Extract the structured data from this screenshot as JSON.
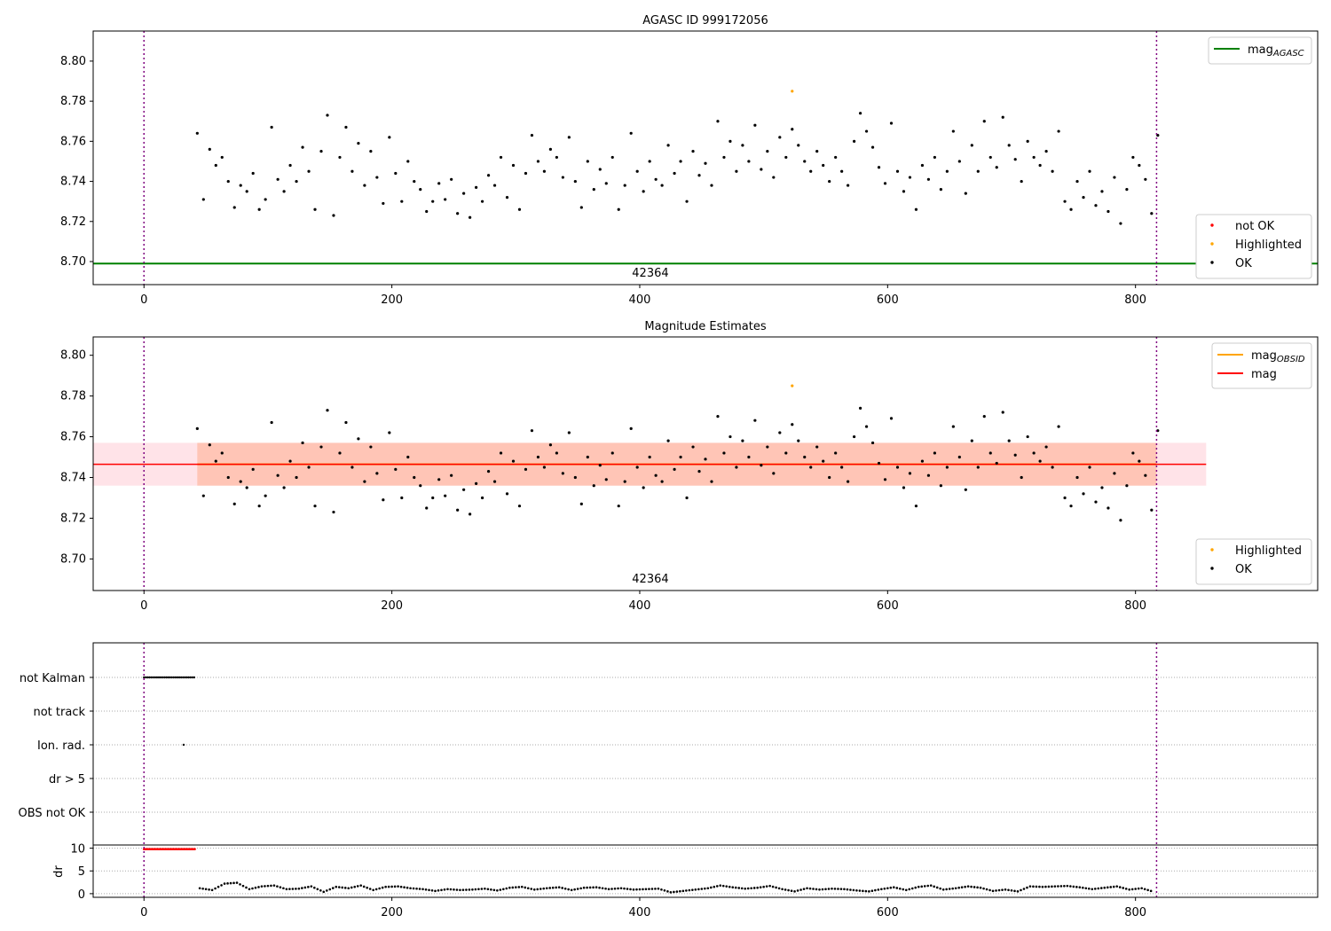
{
  "chart_data": [
    {
      "type": "scatter",
      "title": "AGASC ID 999172056",
      "xlim": [
        -41,
        947
      ],
      "ylim": [
        8.6885,
        8.815
      ],
      "yticks": [
        8.7,
        8.72,
        8.74,
        8.76,
        8.78,
        8.8
      ],
      "xticks": [
        0,
        200,
        400,
        600,
        800
      ],
      "annotation": "42364",
      "vlines": [
        0,
        817
      ],
      "mag_agasc": 8.699,
      "legend_lines": [
        {
          "label": "mag",
          "sub": "AGASC",
          "color": "#008000"
        }
      ],
      "legend_points": [
        {
          "label": "not OK",
          "color": "#ff0000"
        },
        {
          "label": "Highlighted",
          "color": "#ffa500"
        },
        {
          "label": "OK",
          "color": "#000000"
        }
      ],
      "ok": {
        "x_start": 43,
        "x_step": 5,
        "values": [
          8.764,
          8.731,
          8.756,
          8.748,
          8.752,
          8.74,
          8.727,
          8.738,
          8.735,
          8.744,
          8.726,
          8.731,
          8.767,
          8.741,
          8.735,
          8.748,
          8.74,
          8.757,
          8.745,
          8.726,
          8.755,
          8.773,
          8.723,
          8.752,
          8.767,
          8.745,
          8.759,
          8.738,
          8.755,
          8.742,
          8.729,
          8.762,
          8.744,
          8.73,
          8.75,
          8.74,
          8.736,
          8.725,
          8.73,
          8.739,
          8.731,
          8.741,
          8.724,
          8.734,
          8.722,
          8.737,
          8.73,
          8.743,
          8.738,
          8.752,
          8.732,
          8.748,
          8.726,
          8.744,
          8.763,
          8.75,
          8.745,
          8.756,
          8.752,
          8.742,
          8.762,
          8.74,
          8.727,
          8.75,
          8.736,
          8.746,
          8.739,
          8.752,
          8.726,
          8.738,
          8.764,
          8.745,
          8.735,
          8.75,
          8.741,
          8.738,
          8.758,
          8.744,
          8.75,
          8.73,
          8.755,
          8.743,
          8.749,
          8.738,
          8.77,
          8.752,
          8.76,
          8.745,
          8.758,
          8.75,
          8.768,
          8.746,
          8.755,
          8.742,
          8.762,
          8.752,
          8.766,
          8.758,
          8.75,
          8.745,
          8.755,
          8.748,
          8.74,
          8.752,
          8.745,
          8.738,
          8.76,
          8.774,
          8.765,
          8.757,
          8.747,
          8.739,
          8.769,
          8.745,
          8.735,
          8.742,
          8.726,
          8.748,
          8.741,
          8.752,
          8.736,
          8.745,
          8.765,
          8.75,
          8.734,
          8.758,
          8.745,
          8.77,
          8.752,
          8.747,
          8.772,
          8.758,
          8.751,
          8.74,
          8.76,
          8.752,
          8.748,
          8.755,
          8.745,
          8.765,
          8.73,
          8.726,
          8.74,
          8.732,
          8.745,
          8.728,
          8.735,
          8.725,
          8.742,
          8.719,
          8.736,
          8.752,
          8.748,
          8.741,
          8.724,
          8.763
        ]
      },
      "highlighted": [
        {
          "x": 523,
          "y": 8.785
        }
      ]
    },
    {
      "type": "scatter",
      "title": "Magnitude Estimates",
      "xlim": [
        -41,
        947
      ],
      "ylim": [
        8.6845,
        8.809
      ],
      "yticks": [
        8.7,
        8.72,
        8.74,
        8.76,
        8.78,
        8.8
      ],
      "xticks": [
        0,
        200,
        400,
        600,
        800
      ],
      "annotation": "42364",
      "vlines": [
        0,
        817
      ],
      "mag": 8.7465,
      "mag_band": [
        8.736,
        8.757
      ],
      "band_x": [
        43,
        817
      ],
      "outer_band_x": [
        -41,
        857
      ],
      "legend_lines": [
        {
          "label": "mag",
          "sub": "OBSID",
          "color": "#ffa500"
        },
        {
          "label": "mag",
          "sub": "",
          "color": "#ff0000"
        }
      ],
      "legend_points": [
        {
          "label": "Highlighted",
          "color": "#ffa500"
        },
        {
          "label": "OK",
          "color": "#000000"
        }
      ]
    },
    {
      "type": "scatter",
      "title": "",
      "xlim": [
        -41,
        947
      ],
      "xticks": [
        0,
        200,
        400,
        600,
        800
      ],
      "flag_labels": [
        "not Kalman",
        "not track",
        "Ion. rad.",
        "dr > 5",
        "OBS not OK"
      ],
      "not_kalman_x": [
        0,
        41
      ],
      "ion_rad_x": [
        32
      ],
      "dr_ylabel": "dr",
      "dr_yticks": [
        0,
        5,
        10
      ],
      "dr_ylim": [
        -0.8,
        10.7
      ],
      "dr_red": {
        "x": [
          0,
          41
        ],
        "value": 9.8
      },
      "dr": {
        "x_start": 45,
        "x_step": 10,
        "values": [
          1.2,
          0.8,
          2.2,
          2.4,
          1.0,
          1.6,
          1.8,
          1.0,
          1.1,
          1.6,
          0.4,
          1.5,
          1.2,
          1.8,
          0.8,
          1.5,
          1.6,
          1.2,
          1.0,
          0.6,
          1.0,
          0.8,
          0.9,
          1.1,
          0.7,
          1.3,
          1.5,
          0.9,
          1.2,
          1.4,
          0.8,
          1.3,
          1.4,
          1.0,
          1.2,
          0.9,
          1.0,
          1.1,
          0.3,
          0.6,
          0.9,
          1.2,
          1.8,
          1.4,
          1.1,
          1.3,
          1.7,
          1.0,
          0.5,
          1.2,
          0.9,
          1.1,
          1.0,
          0.7,
          0.5,
          1.0,
          1.4,
          0.8,
          1.5,
          1.8,
          0.9,
          1.2,
          1.6,
          1.3,
          0.6,
          0.9,
          0.5,
          1.6,
          1.5,
          1.6,
          1.7,
          1.4,
          1.0,
          1.3,
          1.6,
          0.9,
          1.2,
          0.4
        ]
      }
    }
  ]
}
